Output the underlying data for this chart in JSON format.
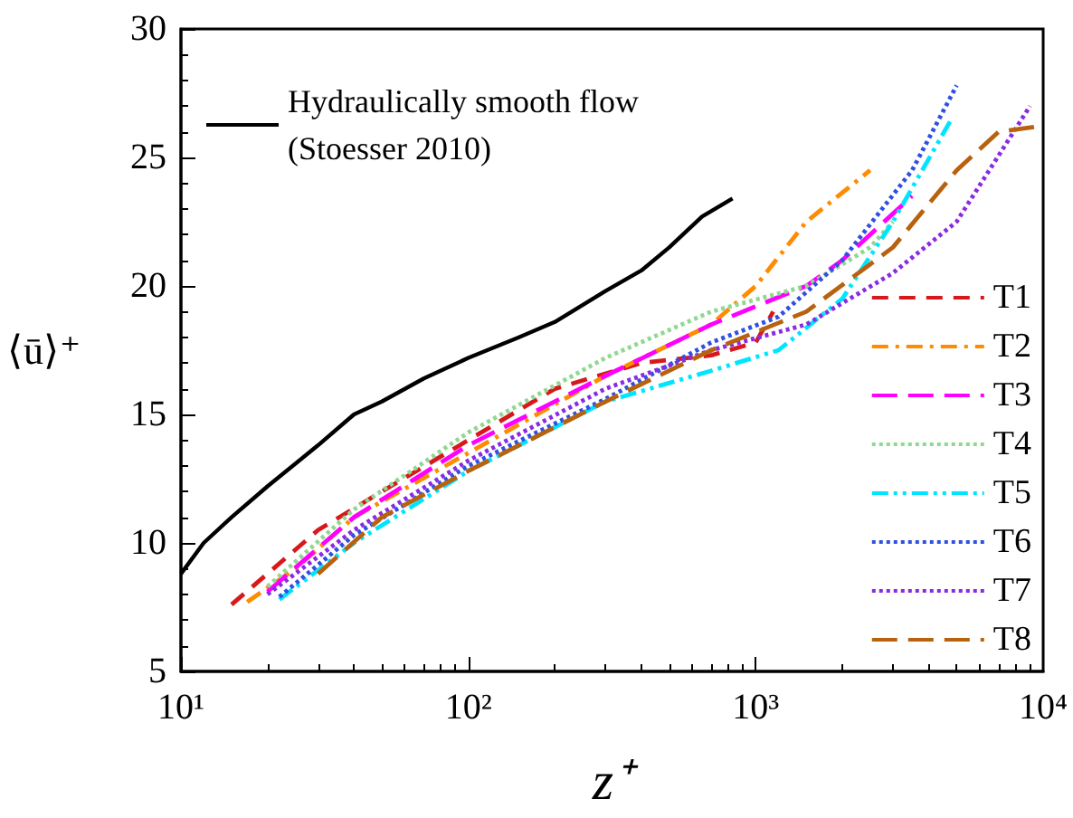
{
  "chart_data": {
    "type": "line",
    "xlabel": "z⁺",
    "ylabel": "⟨ū⟩⁺",
    "log": "x",
    "grid": false,
    "legend": "bottom right",
    "marker": "none",
    "xlim": [
      10,
      10000
    ],
    "xticks": [
      {
        "value": 10,
        "label": "10¹"
      },
      {
        "value": 100,
        "label": "10²"
      },
      {
        "value": 1000,
        "label": "10³"
      },
      {
        "value": 10000,
        "label": "10⁴"
      }
    ],
    "ylim": [
      5,
      30
    ],
    "yticks": [
      5,
      10,
      15,
      20,
      25,
      30
    ],
    "series": [
      {
        "name": "Hydraulically smooth flow\n(Stoesser 2010)",
        "color": "#000000",
        "line_style": "solid",
        "x": [
          10,
          12,
          15,
          20,
          30,
          40,
          50,
          70,
          100,
          150,
          200,
          300,
          400,
          500,
          650,
          830
        ],
        "values": [
          8.8,
          10,
          11,
          12.2,
          13.8,
          15,
          15.5,
          16.4,
          17.2,
          18,
          18.6,
          19.8,
          20.6,
          21.5,
          22.7,
          23.4
        ]
      },
      {
        "name": "T1",
        "color": "#d7191c",
        "line_style": "dashed",
        "x": [
          15,
          20,
          30,
          50,
          100,
          200,
          400,
          700,
          1000,
          1150
        ],
        "values": [
          7.6,
          8.8,
          10.5,
          12,
          14,
          16,
          17,
          17.3,
          17.8,
          19
        ]
      },
      {
        "name": "T2",
        "color": "#ff8c00",
        "line_style": "dashdot",
        "x": [
          17,
          25,
          40,
          100,
          300,
          700,
          1000,
          1500,
          2500
        ],
        "values": [
          7.7,
          9,
          11,
          13.5,
          16.5,
          18.5,
          20,
          22.5,
          24.5
        ]
      },
      {
        "name": "T3",
        "color": "#ff00ff",
        "line_style": "longdash",
        "x": [
          20,
          40,
          100,
          300,
          700,
          1500,
          2000,
          3500
        ],
        "values": [
          8.1,
          11,
          13.8,
          16.5,
          18.5,
          20,
          21,
          23.5
        ]
      },
      {
        "name": "T4",
        "color": "#90d890",
        "line_style": "dotted",
        "x": [
          20,
          40,
          100,
          300,
          700,
          1500,
          2500,
          3000
        ],
        "values": [
          8.3,
          11.3,
          14.3,
          17.2,
          19,
          20,
          21.5,
          22.5
        ]
      },
      {
        "name": "T5",
        "color": "#00e5ff",
        "line_style": "dashdotdot",
        "x": [
          22,
          40,
          100,
          300,
          700,
          1200,
          2000,
          3000,
          4800
        ],
        "values": [
          7.8,
          10,
          12.8,
          15.5,
          16.7,
          17.5,
          19.5,
          22.5,
          26.5
        ]
      },
      {
        "name": "T6",
        "color": "#3050e0",
        "line_style": "dotted",
        "x": [
          22,
          40,
          100,
          300,
          700,
          1200,
          2000,
          3500,
          5000
        ],
        "values": [
          7.9,
          10.3,
          13,
          15.6,
          17.8,
          18.8,
          21,
          24.5,
          27.8
        ]
      },
      {
        "name": "T7",
        "color": "#8a2be2",
        "line_style": "dotted",
        "x": [
          20,
          40,
          100,
          300,
          700,
          1500,
          3000,
          5000,
          9000
        ],
        "values": [
          8,
          10.5,
          13.2,
          16,
          17.5,
          18.5,
          20.5,
          22.5,
          27
        ]
      },
      {
        "name": "T8",
        "color": "#b8620f",
        "line_style": "longdash",
        "x": [
          30,
          50,
          100,
          300,
          700,
          1500,
          3000,
          5000,
          7000,
          9500
        ],
        "values": [
          8.8,
          11,
          12.8,
          15.5,
          17.5,
          19,
          21.5,
          24.5,
          26,
          26.2
        ]
      }
    ]
  }
}
